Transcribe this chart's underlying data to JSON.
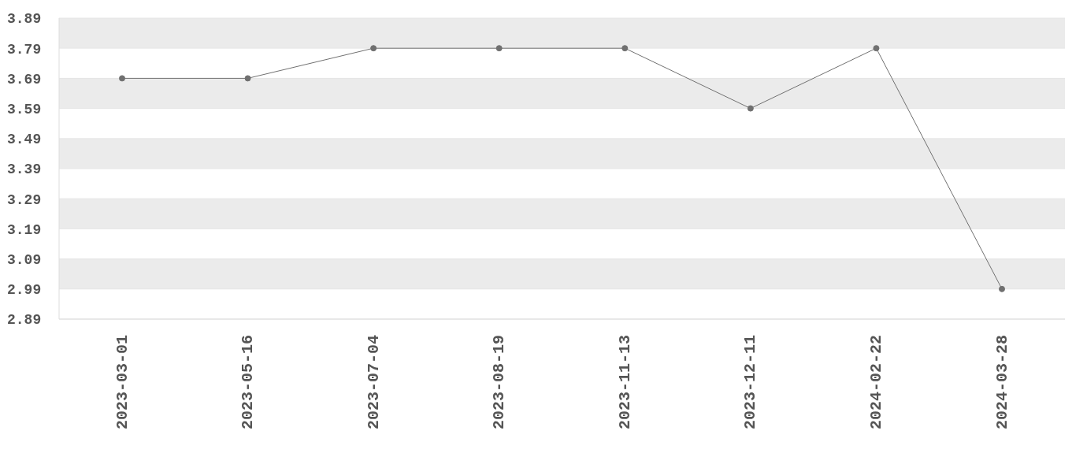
{
  "chart_data": {
    "type": "line",
    "categories": [
      "2023-03-01",
      "2023-05-16",
      "2023-07-04",
      "2023-08-19",
      "2023-11-13",
      "2023-12-11",
      "2024-02-22",
      "2024-03-28"
    ],
    "values": [
      3.69,
      3.69,
      3.79,
      3.79,
      3.79,
      3.59,
      3.79,
      2.99
    ],
    "color": "#707070",
    "ylim": [
      2.89,
      3.89
    ],
    "yticks": [
      2.89,
      2.99,
      3.09,
      3.19,
      3.29,
      3.39,
      3.49,
      3.59,
      3.69,
      3.79,
      3.89
    ],
    "grid": "y",
    "marker": "circle",
    "line_style": "solid"
  }
}
